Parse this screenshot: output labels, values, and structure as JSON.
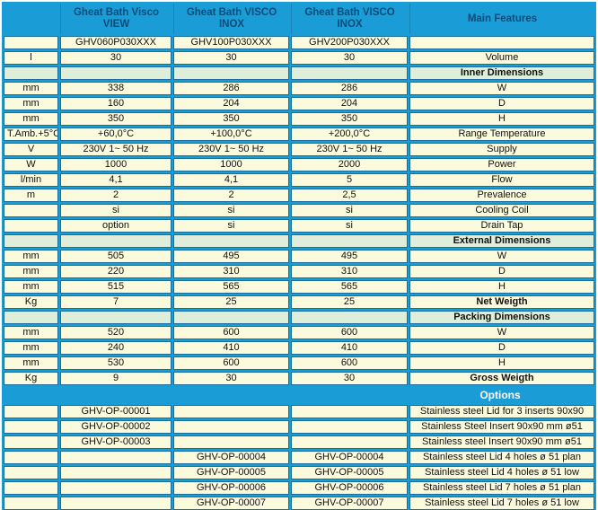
{
  "colors": {
    "band_cyan": "#1A9CD6",
    "cell_cream": "#FCFADC",
    "section_green": "#DEEEDB",
    "cell_border": "#1A6F9A",
    "header_text": "#0C4B78",
    "banner_text": "#FFFFFF",
    "body_text": "#111111"
  },
  "table": {
    "header": [
      "",
      "Gheat Bath Visco\nVIEW",
      "Gheat Bath VISCO\nINOX",
      "Gheat Bath VISCO\nINOX",
      "Main Features"
    ],
    "rows": [
      {
        "type": "data",
        "cells": [
          "",
          "GHV060P030XXX",
          "GHV100P030XXX",
          "GHV200P030XXX",
          ""
        ]
      },
      {
        "type": "data",
        "cells": [
          "l",
          "30",
          "30",
          "30",
          "Volume"
        ]
      },
      {
        "type": "section",
        "cells": [
          "",
          "",
          "",
          "",
          "Inner Dimensions"
        ]
      },
      {
        "type": "data",
        "cells": [
          "mm",
          "338",
          "286",
          "286",
          "W"
        ]
      },
      {
        "type": "data",
        "cells": [
          "mm",
          "160",
          "204",
          "204",
          "D"
        ]
      },
      {
        "type": "data",
        "cells": [
          "mm",
          "350",
          "350",
          "350",
          "H"
        ]
      },
      {
        "type": "data",
        "cells": [
          "T.Amb.+5°C",
          "+60,0°C",
          "+100,0°C",
          "+200,0°C",
          "Range Temperature"
        ]
      },
      {
        "type": "data",
        "cells": [
          "V",
          "230V 1~ 50 Hz",
          "230V 1~ 50 Hz",
          "230V 1~ 50 Hz",
          "Supply"
        ]
      },
      {
        "type": "data",
        "cells": [
          "W",
          "1000",
          "1000",
          "2000",
          "Power"
        ]
      },
      {
        "type": "data",
        "cells": [
          "l/min",
          "4,1",
          "4,1",
          "5",
          "Flow"
        ]
      },
      {
        "type": "data",
        "cells": [
          "m",
          "2",
          "2",
          "2,5",
          "Prevalence"
        ]
      },
      {
        "type": "data",
        "cells": [
          "",
          "si",
          "si",
          "si",
          "Cooling Coil"
        ]
      },
      {
        "type": "data",
        "cells": [
          "",
          "option",
          "si",
          "si",
          "Drain Tap"
        ]
      },
      {
        "type": "section",
        "cells": [
          "",
          "",
          "",
          "",
          "External Dimensions"
        ]
      },
      {
        "type": "data",
        "cells": [
          "mm",
          "505",
          "495",
          "495",
          "W"
        ]
      },
      {
        "type": "data",
        "cells": [
          "mm",
          "220",
          "310",
          "310",
          "D"
        ]
      },
      {
        "type": "data",
        "cells": [
          "mm",
          "515",
          "565",
          "565",
          "H"
        ]
      },
      {
        "type": "data_bold",
        "cells": [
          "Kg",
          "7",
          "25",
          "25",
          "Net Weigth"
        ]
      },
      {
        "type": "section",
        "cells": [
          "",
          "",
          "",
          "",
          "Packing Dimensions"
        ]
      },
      {
        "type": "data",
        "cells": [
          "mm",
          "520",
          "600",
          "600",
          "W"
        ]
      },
      {
        "type": "data",
        "cells": [
          "mm",
          "240",
          "410",
          "410",
          "D"
        ]
      },
      {
        "type": "data",
        "cells": [
          "mm",
          "530",
          "600",
          "600",
          "H"
        ]
      },
      {
        "type": "data_bold",
        "cells": [
          "Kg",
          "9",
          "30",
          "30",
          "Gross Weigth"
        ]
      },
      {
        "type": "banner",
        "label": "Options"
      },
      {
        "type": "data",
        "cells": [
          "",
          "GHV-OP-00001",
          "",
          "",
          "Stainless steel Lid for 3 inserts 90x90"
        ]
      },
      {
        "type": "data",
        "cells": [
          "",
          "GHV-OP-00002",
          "",
          "",
          "Stainless Steel Insert 90x90 mm ø51"
        ]
      },
      {
        "type": "data",
        "cells": [
          "",
          "GHV-OP-00003",
          "",
          "",
          "Stainless steel Insert 90x90 mm ø51"
        ]
      },
      {
        "type": "data",
        "cells": [
          "",
          "",
          "GHV-OP-00004",
          "GHV-OP-00004",
          "Stainless steel Lid 4 holes ø 51 plan"
        ]
      },
      {
        "type": "data",
        "cells": [
          "",
          "",
          "GHV-OP-00005",
          "GHV-OP-00005",
          "Stainless steel Lid 4 holes ø 51 low"
        ]
      },
      {
        "type": "data",
        "cells": [
          "",
          "",
          "GHV-OP-00006",
          "GHV-OP-00006",
          "Stainless steel Lid 7 holes ø 51 plan"
        ]
      },
      {
        "type": "data",
        "cells": [
          "",
          "",
          "GHV-OP-00007",
          "GHV-OP-00007",
          "Stainless steel Lid 7 holes ø 51 low"
        ]
      }
    ]
  }
}
